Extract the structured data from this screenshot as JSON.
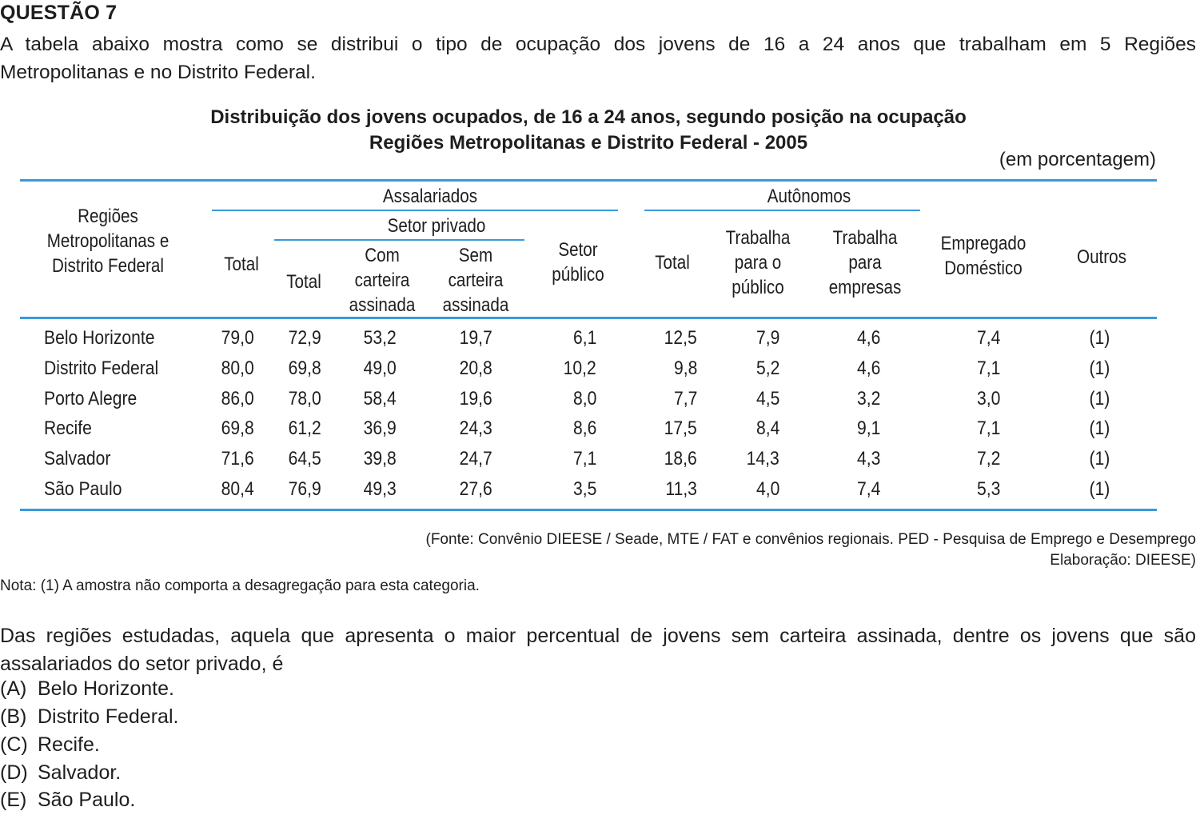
{
  "question": {
    "title": "QUESTÃO 7",
    "intro_line1": "A tabela abaixo mostra como se distribui o tipo de ocupação dos jovens de 16 a 24 anos que trabalham em 5 Regiões",
    "intro_line2": "Metropolitanas e no Distrito Federal."
  },
  "table": {
    "title_line1": "Distribuição dos jovens ocupados, de 16 a 24 anos, segundo posição na ocupação",
    "title_line2": "Regiões Metropolitanas e Distrito Federal - 2005",
    "unit": "(em porcentagem)",
    "headers": {
      "region": [
        "Regiões",
        "Metropolitanas e",
        "Distrito Federal"
      ],
      "assalariados": "Assalariados",
      "setor_privado": "Setor privado",
      "total": "Total",
      "com_carteira": [
        "Com",
        "carteira",
        "assinada"
      ],
      "sem_carteira": [
        "Sem",
        "carteira",
        "assinada"
      ],
      "setor_publico": [
        "Setor",
        "público"
      ],
      "autonomos": "Autônomos",
      "trab_publico": [
        "Trabalha",
        "para o",
        "público"
      ],
      "trab_empresas": [
        "Trabalha",
        "para",
        "empresas"
      ],
      "domestico": [
        "Empregado",
        "Doméstico"
      ],
      "outros": "Outros"
    },
    "rows": [
      {
        "region": "Belo Horizonte",
        "values": [
          "79,0",
          "72,9",
          "53,2",
          "19,7",
          "6,1",
          "12,5",
          "7,9",
          "4,6",
          "7,4",
          "(1)"
        ]
      },
      {
        "region": "Distrito Federal",
        "values": [
          "80,0",
          "69,8",
          "49,0",
          "20,8",
          "10,2",
          "9,8",
          "5,2",
          "4,6",
          "7,1",
          "(1)"
        ]
      },
      {
        "region": "Porto Alegre",
        "values": [
          "86,0",
          "78,0",
          "58,4",
          "19,6",
          "8,0",
          "7,7",
          "4,5",
          "3,2",
          "3,0",
          "(1)"
        ]
      },
      {
        "region": "Recife",
        "values": [
          "69,8",
          "61,2",
          "36,9",
          "24,3",
          "8,6",
          "17,5",
          "8,4",
          "9,1",
          "7,1",
          "(1)"
        ]
      },
      {
        "region": "Salvador",
        "values": [
          "71,6",
          "64,5",
          "39,8",
          "24,7",
          "7,1",
          "18,6",
          "14,3",
          "4,3",
          "7,2",
          "(1)"
        ]
      },
      {
        "region": "São Paulo",
        "values": [
          "80,4",
          "76,9",
          "49,3",
          "27,6",
          "3,5",
          "11,3",
          "4,0",
          "7,4",
          "5,3",
          "(1)"
        ]
      }
    ],
    "rule_color": "#3a9ad9",
    "source_line1": "(Fonte: Convênio DIEESE / Seade, MTE / FAT e convênios regionais. PED - Pesquisa de Emprego e Desemprego",
    "source_line2": "Elaboração: DIEESE)",
    "note": "Nota: (1) A amostra não comporta a desagregação para esta categoria."
  },
  "stem": {
    "line1": "Das regiões estudadas, aquela que apresenta o maior percentual de jovens sem carteira assinada, dentre os jovens que são",
    "line2": "assalariados do setor privado, é"
  },
  "options": [
    {
      "letter": "(A)",
      "text": "Belo Horizonte."
    },
    {
      "letter": "(B)",
      "text": "Distrito Federal."
    },
    {
      "letter": "(C)",
      "text": "Recife."
    },
    {
      "letter": "(D)",
      "text": "Salvador."
    },
    {
      "letter": "(E)",
      "text": "São Paulo."
    }
  ]
}
